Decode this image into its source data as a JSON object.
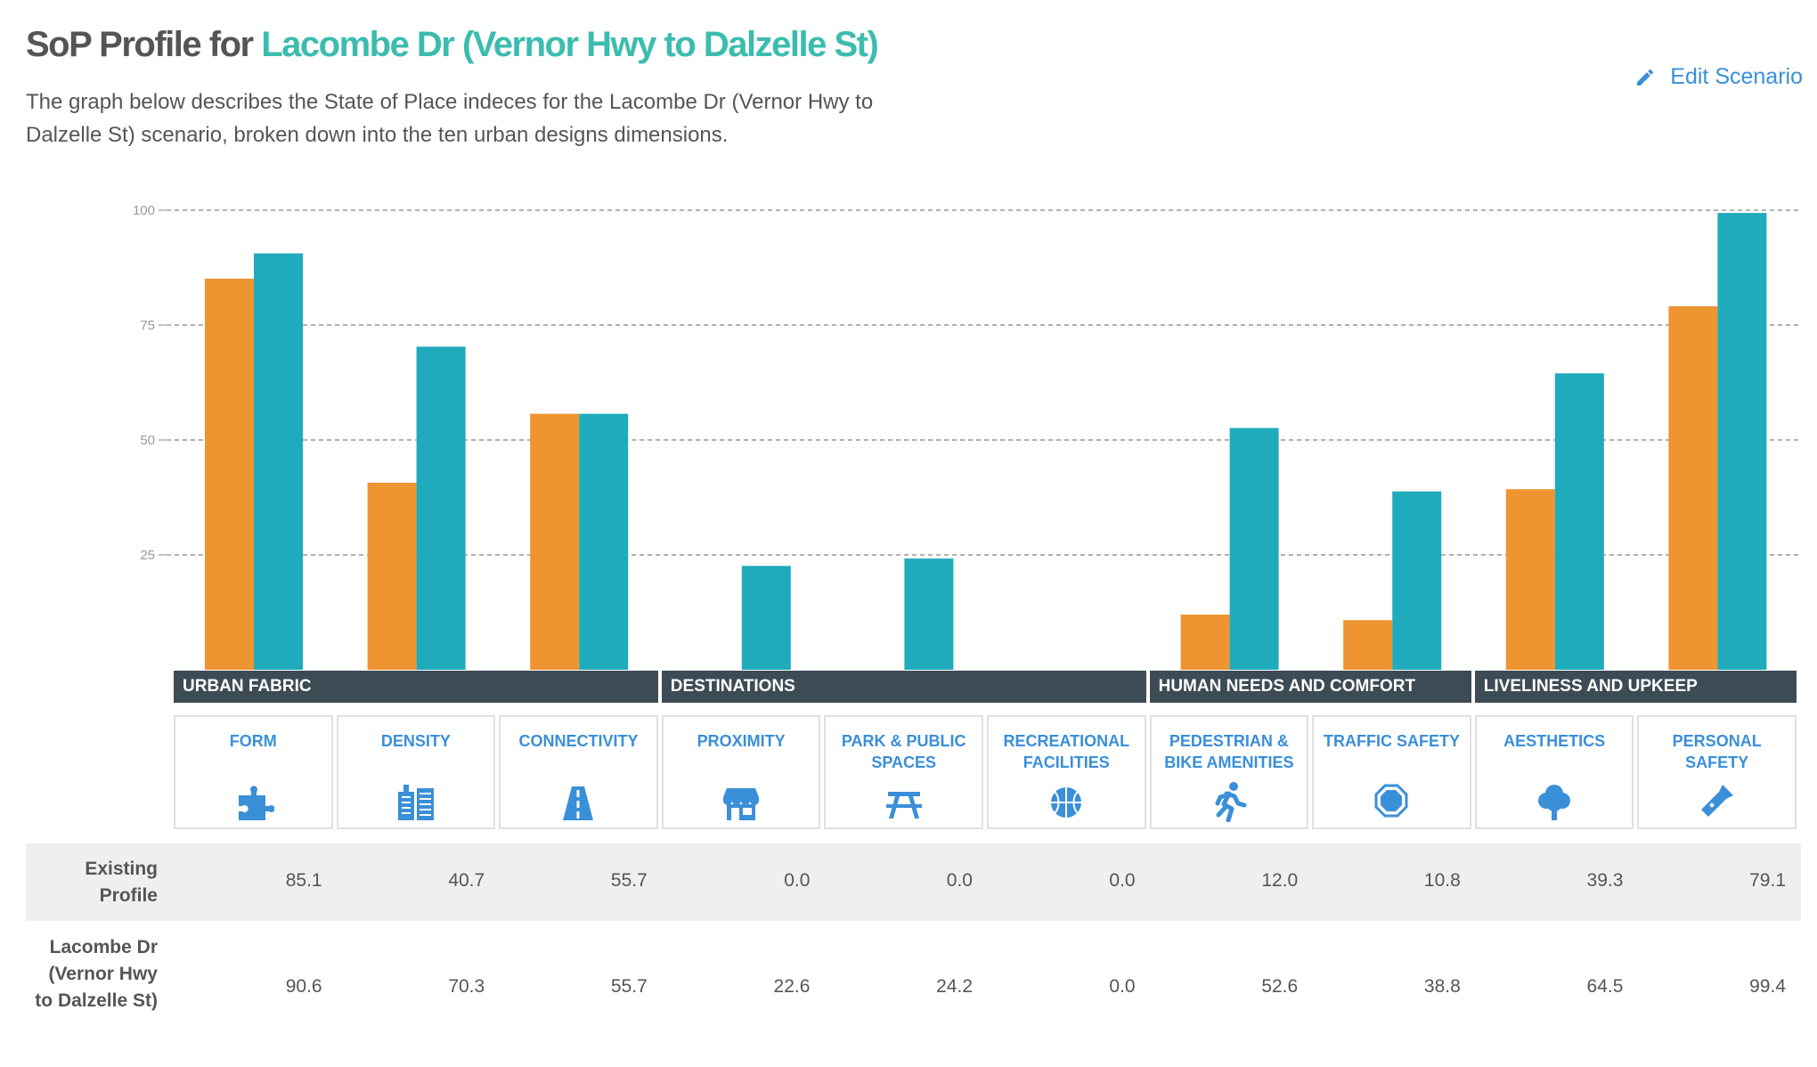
{
  "header": {
    "title_prefix": "SoP Profile for ",
    "title_scenario": "Lacombe Dr (Vernor Hwy to Dalzelle St)",
    "description": "The graph below describes the State of Place indeces for the Lacombe Dr (Vernor Hwy to Dalzelle St) scenario, broken down into the ten urban designs dimensions.",
    "edit_label": "Edit Scenario",
    "edit_icon": "pencil-icon"
  },
  "chart_data": {
    "type": "bar",
    "title": "",
    "xlabel": "",
    "ylabel": "",
    "ylim": [
      0,
      100
    ],
    "yticks": [
      25,
      50,
      75,
      100
    ],
    "grid": true,
    "colors": {
      "existing": "#ee9430",
      "scenario": "#1fabbb"
    },
    "categories": [
      "FORM",
      "DENSITY",
      "CONNECTIVITY",
      "PROXIMITY",
      "PARK & PUBLIC SPACES",
      "RECREATIONAL FACILITIES",
      "PEDESTRIAN & BIKE AMENITIES",
      "TRAFFIC SAFETY",
      "AESTHETICS",
      "PERSONAL SAFETY"
    ],
    "series": [
      {
        "name": "Existing Profile",
        "values": [
          85.1,
          40.7,
          55.7,
          0.0,
          0.0,
          0.0,
          12.0,
          10.8,
          39.3,
          79.1
        ]
      },
      {
        "name": "Lacombe Dr (Vernor Hwy to Dalzelle St)",
        "values": [
          90.6,
          70.3,
          55.7,
          22.6,
          24.2,
          0.0,
          52.6,
          38.8,
          64.5,
          99.4
        ]
      }
    ],
    "groups": [
      {
        "label": "URBAN FABRIC",
        "count": 3
      },
      {
        "label": "DESTINATIONS",
        "count": 3
      },
      {
        "label": "HUMAN NEEDS AND COMFORT",
        "count": 2
      },
      {
        "label": "LIVELINESS AND UPKEEP",
        "count": 2
      }
    ]
  },
  "dimensions": [
    {
      "label": "FORM",
      "icon": "puzzle-icon"
    },
    {
      "label": "DENSITY",
      "icon": "buildings-icon"
    },
    {
      "label": "CONNECTIVITY",
      "icon": "road-icon"
    },
    {
      "label": "PROXIMITY",
      "icon": "storefront-icon"
    },
    {
      "label": "PARK & PUBLIC SPACES",
      "icon": "picnic-table-icon"
    },
    {
      "label": "RECREATIONAL FACILITIES",
      "icon": "basketball-icon"
    },
    {
      "label": "PEDESTRIAN & BIKE AMENITIES",
      "icon": "running-person-icon"
    },
    {
      "label": "TRAFFIC SAFETY",
      "icon": "octagon-icon"
    },
    {
      "label": "AESTHETICS",
      "icon": "tree-icon"
    },
    {
      "label": "PERSONAL SAFETY",
      "icon": "flashlight-icon"
    }
  ],
  "table": {
    "row1_label": "Existing Profile",
    "row2_label": "Lacombe Dr (Vernor Hwy to Dalzelle St)",
    "row1_values": [
      "85.1",
      "40.7",
      "55.7",
      "0.0",
      "0.0",
      "0.0",
      "12.0",
      "10.8",
      "39.3",
      "79.1"
    ],
    "row2_values": [
      "90.6",
      "70.3",
      "55.7",
      "22.6",
      "24.2",
      "0.0",
      "52.6",
      "38.8",
      "64.5",
      "99.4"
    ]
  }
}
